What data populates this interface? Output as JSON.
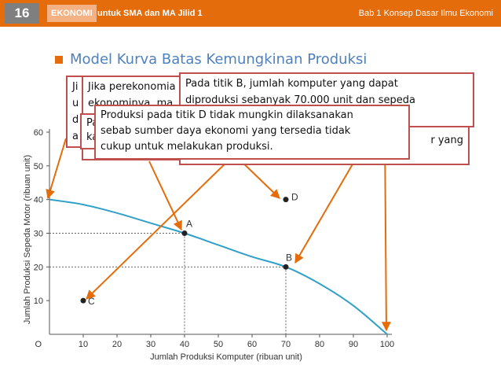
{
  "header": {
    "page_number": "16",
    "subject": "EKONOMI",
    "book": "untuk SMA dan MA Jilid 1",
    "chapter": "Bab 1 Konsep Dasar Ilmu Ekonomi"
  },
  "slide_title": "Model Kurva Batas Kemungkinan Produksi",
  "callouts": {
    "jika_back": "Ji\nu\nd\na",
    "jika_front": "Jika perekonomia\nekonominya, ma\n\nunt",
    "pa_middle": "Pa\nka",
    "b_front": "Pada titik B, jumlah komputer yang dapat\ndiproduksi sebanyak 70.000 unit dan sepeda",
    "b_back_tail": "r yang",
    "d_front": "Produksi pada titik D tidak mungkin dilaksanakan\nsebab sumber daya ekonomi yang tersedia tidak\ncukup untuk melakukan produksi."
  },
  "colors": {
    "curve": "#31a0c8",
    "arrow": "#e46c0a",
    "box_border": "#c0504d",
    "accent": "#e46c0a"
  },
  "chart_data": {
    "type": "line",
    "title": "",
    "xlabel": "Jumlah Produksi Komputer (ribuan unit)",
    "ylabel": "Jumlah Produksi Sepeda Motor (ribuan unit)",
    "origin_label": "O",
    "xlim": [
      0,
      100
    ],
    "ylim": [
      0,
      60
    ],
    "x_ticks": [
      10,
      20,
      30,
      40,
      50,
      60,
      70,
      80,
      90,
      100
    ],
    "y_ticks": [
      10,
      20,
      30,
      40,
      50,
      60
    ],
    "grid": false,
    "series": [
      {
        "x": [
          0,
          10,
          20,
          30,
          40,
          50,
          60,
          70,
          80,
          90,
          100
        ],
        "y": [
          40,
          38.5,
          36,
          33,
          30,
          26.5,
          23,
          20,
          15,
          8.5,
          0
        ]
      }
    ],
    "points": [
      {
        "label": "A",
        "x": 40,
        "y": 30,
        "guides": true
      },
      {
        "label": "B",
        "x": 70,
        "y": 20,
        "guides": true
      },
      {
        "label": "C",
        "x": 10,
        "y": 10,
        "guides": false
      },
      {
        "label": "D",
        "x": 70,
        "y": 40,
        "guides": false
      }
    ]
  }
}
